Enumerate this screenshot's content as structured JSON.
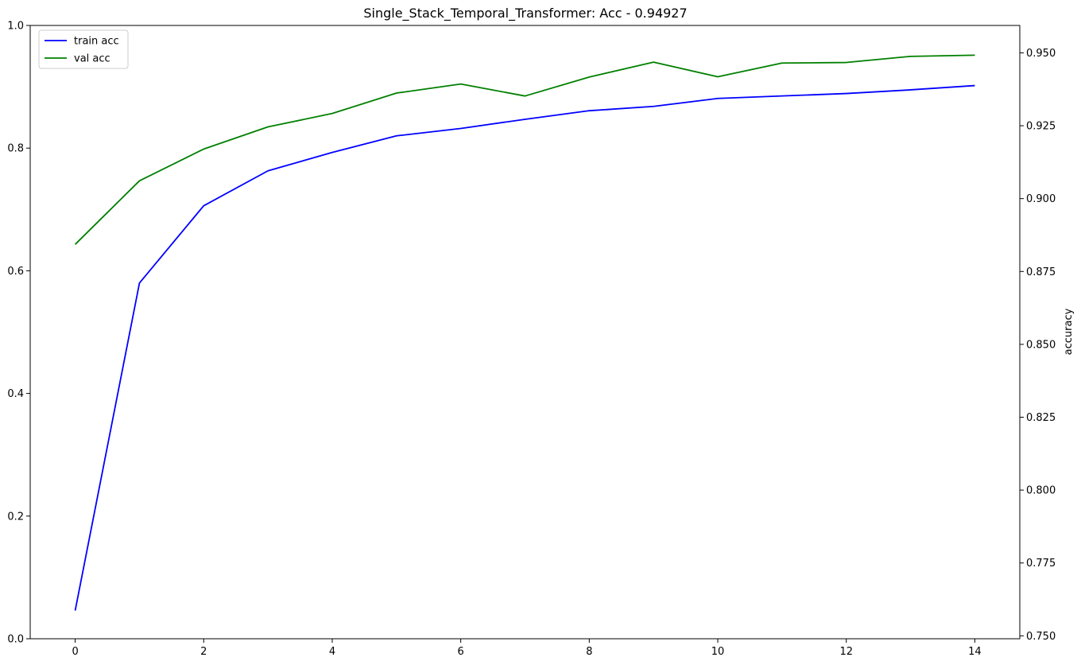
{
  "chart_data": {
    "type": "line",
    "title": "Single_Stack_Temporal_Transformer: Acc - 0.94927",
    "xlabel": "",
    "ylabel_left": "",
    "ylabel_right": "accuracy",
    "x": [
      0,
      1,
      2,
      3,
      4,
      5,
      6,
      7,
      8,
      9,
      10,
      11,
      12,
      13,
      14
    ],
    "x_ticks": [
      "0",
      "2",
      "4",
      "6",
      "8",
      "10",
      "12",
      "14"
    ],
    "xlim": [
      -0.7,
      14.7
    ],
    "ylim_left": [
      0,
      1
    ],
    "y_ticks_left": [
      "0.0",
      "0.2",
      "0.4",
      "0.6",
      "0.8",
      "1.0"
    ],
    "ylim_right": [
      0.749,
      0.9594
    ],
    "y_ticks_right": [
      "0.750",
      "0.775",
      "0.800",
      "0.825",
      "0.850",
      "0.875",
      "0.900",
      "0.925",
      "0.950"
    ],
    "grid": false,
    "legend_position": "upper-left",
    "series": [
      {
        "name": "train acc",
        "axis": "left",
        "color": "#0000ff",
        "values": [
          0.046,
          0.58,
          0.706,
          0.763,
          0.793,
          0.82,
          0.832,
          0.847,
          0.861,
          0.868,
          0.881,
          0.885,
          0.889,
          0.895,
          0.902
        ]
      },
      {
        "name": "val acc",
        "axis": "right",
        "color": "#008000",
        "values": [
          0.8843,
          0.9061,
          0.917,
          0.9246,
          0.9292,
          0.9362,
          0.9393,
          0.9352,
          0.9417,
          0.9468,
          0.9418,
          0.9465,
          0.9467,
          0.9488,
          0.9492
        ]
      }
    ]
  }
}
